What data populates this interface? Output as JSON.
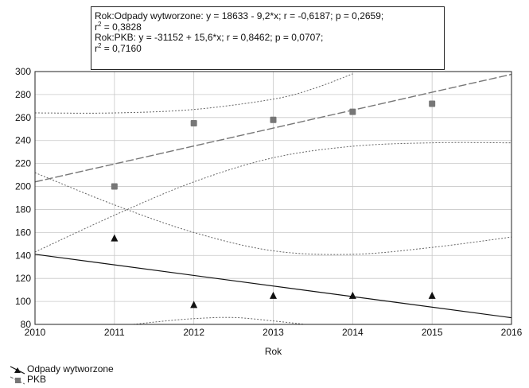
{
  "stats": {
    "line1": "Rok:Odpady wytworzone:   y = 18633 - 9,2*x;  r = -0,6187; p = 0,2659;",
    "r2_1_prefix": "r",
    "r2_1_sup": "2",
    "r2_1_value": " = 0,3828",
    "line2": "Rok:PKB:   y = -31152 + 15,6*x;  r = 0,8462; p = 0,0707;",
    "r2_2_prefix": "r",
    "r2_2_sup": "2",
    "r2_2_value": " = 0,7160"
  },
  "chart_data": {
    "type": "scatter",
    "xlabel": "Rok",
    "ylabel": "",
    "xlim": [
      2010,
      2016
    ],
    "ylim": [
      80,
      300
    ],
    "xticks": [
      2010,
      2011,
      2012,
      2013,
      2014,
      2015,
      2016
    ],
    "yticks": [
      80,
      100,
      120,
      140,
      160,
      180,
      200,
      220,
      240,
      260,
      280,
      300
    ],
    "grid": true,
    "legend_position": "bottom-left",
    "series": [
      {
        "name": "Odpady wytworzone",
        "marker": "triangle",
        "color": "#111111",
        "x": [
          2011,
          2012,
          2013,
          2014,
          2015
        ],
        "y": [
          155,
          97,
          105,
          105,
          105
        ],
        "fit": {
          "intercept": 18633,
          "slope": -9.2,
          "line": "solid"
        },
        "confidence_upper": [
          [
            2010,
            212
          ],
          [
            2011,
            184
          ],
          [
            2012,
            160
          ],
          [
            2013,
            144
          ],
          [
            2014,
            141
          ],
          [
            2015,
            147
          ],
          [
            2016,
            156
          ]
        ],
        "confidence_lower": [
          [
            2011,
            78
          ],
          [
            2011.5,
            82
          ],
          [
            2012,
            85
          ],
          [
            2012.5,
            86
          ],
          [
            2013,
            83
          ],
          [
            2013.4,
            80
          ]
        ]
      },
      {
        "name": "PKB",
        "marker": "square",
        "color": "#777777",
        "x": [
          2011,
          2012,
          2013,
          2014,
          2015
        ],
        "y": [
          200,
          255,
          258,
          265,
          272
        ],
        "fit": {
          "intercept": -31152,
          "slope": 15.6,
          "line": "dashed"
        },
        "confidence_upper": [
          [
            2010,
            264
          ],
          [
            2011,
            264
          ],
          [
            2012,
            267
          ],
          [
            2013,
            276
          ],
          [
            2013.5,
            285
          ],
          [
            2014,
            298
          ]
        ],
        "confidence_lower": [
          [
            2010,
            143
          ],
          [
            2011,
            175
          ],
          [
            2012,
            204
          ],
          [
            2013,
            225
          ],
          [
            2014,
            235
          ],
          [
            2015,
            238
          ],
          [
            2016,
            238
          ]
        ]
      }
    ]
  }
}
